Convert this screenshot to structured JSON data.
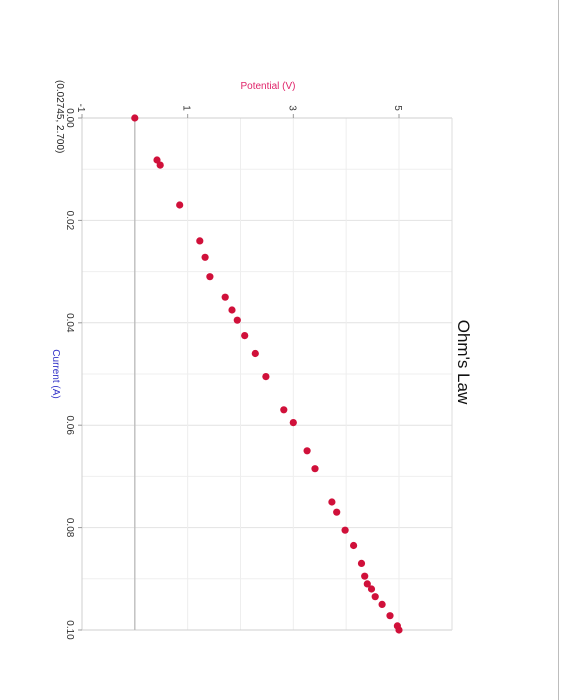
{
  "chart_data": {
    "type": "scatter",
    "title": "Ohm's Law",
    "xlabel": "Current (A)",
    "ylabel": "Potential (V)",
    "xlim": [
      0.0,
      0.1
    ],
    "ylim": [
      -1,
      5
    ],
    "x_ticks": [
      "0.00",
      "0.02",
      "0.04",
      "0.06",
      "0.08",
      "0.10"
    ],
    "y_ticks": [
      "-1",
      "1",
      "3",
      "5"
    ],
    "grid": true,
    "cursor_readout": "(0.02745, 2.700)",
    "marker_color": "#d0103a",
    "series": [
      {
        "x": [
          0.0,
          0.0082,
          0.0092,
          0.017,
          0.024,
          0.0272,
          0.031,
          0.035,
          0.0375,
          0.0395,
          0.0425,
          0.046,
          0.0505,
          0.057,
          0.0595,
          0.065,
          0.0685,
          0.075,
          0.077,
          0.0805,
          0.0835,
          0.087,
          0.0895,
          0.091,
          0.092,
          0.0935,
          0.095,
          0.0972,
          0.0992,
          0.1
        ],
        "y": [
          0.0,
          0.42,
          0.48,
          0.85,
          1.23,
          1.33,
          1.42,
          1.71,
          1.84,
          1.94,
          2.08,
          2.28,
          2.48,
          2.82,
          3.0,
          3.26,
          3.41,
          3.73,
          3.82,
          3.98,
          4.14,
          4.29,
          4.35,
          4.4,
          4.48,
          4.55,
          4.68,
          4.83,
          4.97,
          5.0
        ]
      }
    ]
  }
}
